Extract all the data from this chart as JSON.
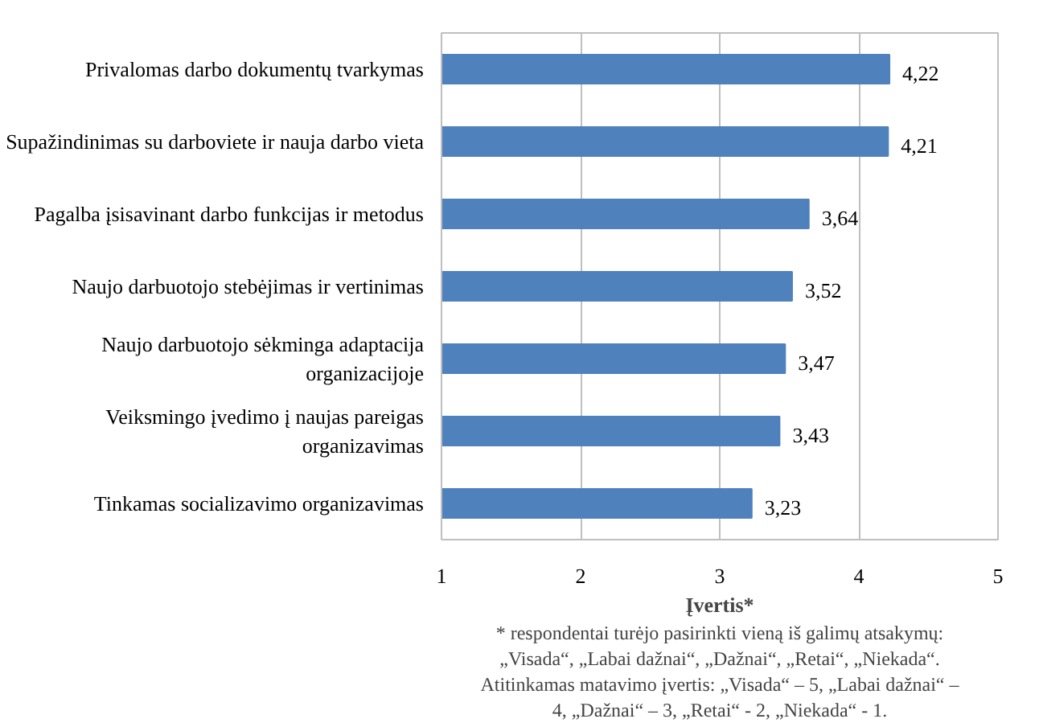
{
  "chart_data": {
    "type": "bar",
    "orientation": "horizontal",
    "categories": [
      "Privalomas darbo dokumentų tvarkymas",
      "Supažindinimas su darboviete ir nauja darbo vieta",
      "Pagalba įsisavinant darbo funkcijas ir metodus",
      "Naujo darbuotojo stebėjimas ir vertinimas",
      "Naujo darbuotojo sėkminga adaptacija organizacijoje",
      "Veiksmingo įvedimo į naujas pareigas organizavimas",
      "Tinkamas socializavimo organizavimas"
    ],
    "values": [
      4.22,
      4.21,
      3.64,
      3.52,
      3.47,
      3.43,
      3.23
    ],
    "value_labels": [
      "4,22",
      "4,21",
      "3,64",
      "3,52",
      "3,47",
      "3,43",
      "3,23"
    ],
    "color": "#4f81bd",
    "xlim": [
      1,
      5
    ],
    "xticks": [
      1,
      2,
      3,
      4,
      5
    ],
    "grid": "x",
    "xlabel": "Įvertis*",
    "annotations": [
      "* respondentai turėjo pasirinkti vieną iš galimų atsakymų: „Visada“, „Labai dažnai“, „Dažnai“, „Retai“, „Niekada“. Atitinkamas matavimo įvertis: „Visada“ – 5, „Labai dažnai“ – 4, „Dažnai“ – 3, „Retai“ - 2, „Niekada“ - 1."
    ]
  }
}
